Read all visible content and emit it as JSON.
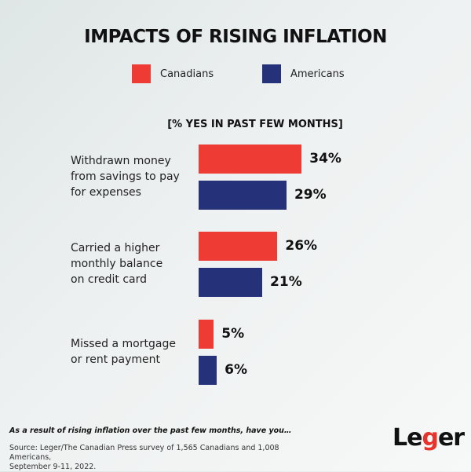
{
  "chart_data": {
    "type": "bar",
    "orientation": "horizontal",
    "title": "IMPACTS OF RISING INFLATION",
    "subtitle": "[% YES IN PAST FEW MONTHS]",
    "categories": [
      "Withdrawn money from savings to pay for expenses",
      "Carried a higher monthly balance on credit card",
      "Missed a mortgage or rent payment"
    ],
    "category_lines": [
      [
        "Withdrawn money",
        "from savings to pay",
        "for expenses"
      ],
      [
        "Carried a higher",
        "monthly balance",
        "on credit card"
      ],
      [
        "Missed a mortgage",
        "or rent payment"
      ]
    ],
    "series": [
      {
        "name": "Canadians",
        "color": "#ee3b34",
        "values": [
          34,
          26,
          5
        ],
        "labels": [
          "34%",
          "26%",
          "5%"
        ]
      },
      {
        "name": "Americans",
        "color": "#253178",
        "values": [
          29,
          21,
          6
        ],
        "labels": [
          "29%",
          "21%",
          "6%"
        ]
      }
    ],
    "xlim": [
      0,
      100
    ],
    "unit": "%",
    "grid": false,
    "legend_position": "top-center"
  },
  "footer": {
    "question": "As a result of rising inflation over the past few months, have you…",
    "source_line1": "Source: Leger/The Canadian Press survey of 1,565 Canadians and 1,008 Americans,",
    "source_line2": "September 9-11, 2022."
  },
  "logo": {
    "part1": "Le",
    "part2": "g",
    "part3": "er"
  }
}
